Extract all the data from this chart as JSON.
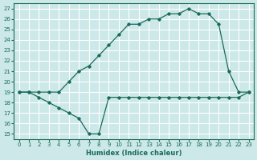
{
  "xlabel": "Humidex (Indice chaleur)",
  "bg_color": "#cce8e8",
  "grid_color": "#ffffff",
  "line_color": "#1a6b5a",
  "ylim": [
    14.5,
    27.5
  ],
  "xlim": [
    -0.5,
    23.5
  ],
  "yticks": [
    15,
    16,
    17,
    18,
    19,
    20,
    21,
    22,
    23,
    24,
    25,
    26,
    27
  ],
  "xticks": [
    0,
    1,
    2,
    3,
    4,
    5,
    6,
    7,
    8,
    9,
    10,
    11,
    12,
    13,
    14,
    15,
    16,
    17,
    18,
    19,
    20,
    21,
    22,
    23
  ],
  "upper_x": [
    0,
    1,
    2,
    3,
    4,
    5,
    6,
    7,
    8,
    9,
    10,
    11,
    12,
    13,
    14,
    15,
    16,
    17,
    18,
    19,
    20,
    21,
    22,
    23
  ],
  "upper_y": [
    19.0,
    19.0,
    19.0,
    19.0,
    19.0,
    20.0,
    21.0,
    21.5,
    22.5,
    23.5,
    24.5,
    25.5,
    25.5,
    26.0,
    26.0,
    26.5,
    26.5,
    27.0,
    26.5,
    26.5,
    25.5,
    21.0,
    19.0,
    19.0
  ],
  "lower_x": [
    0,
    1,
    2,
    3,
    4,
    5,
    6,
    7,
    8,
    9,
    10,
    11,
    12,
    13,
    14,
    15,
    16,
    17,
    18,
    19,
    20,
    21,
    22,
    23
  ],
  "lower_y": [
    19.0,
    19.0,
    18.5,
    18.0,
    17.5,
    17.0,
    16.5,
    15.0,
    15.0,
    18.5,
    18.5,
    18.5,
    18.5,
    18.5,
    18.5,
    18.5,
    18.5,
    18.5,
    18.5,
    18.5,
    18.5,
    18.5,
    18.5,
    19.0
  ]
}
